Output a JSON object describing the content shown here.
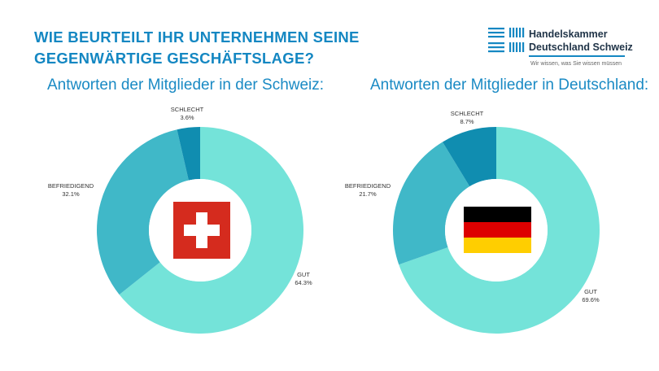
{
  "title_line1": "WIE BEURTEILT IHR UNTERNEHMEN SEINE",
  "title_line2": "GEGENWÄRTIGE GESCHÄFTSLAGE?",
  "logo": {
    "line1": "Handelskammer",
    "line2": "Deutschland Schweiz",
    "tagline": "Wir wissen, was Sie wissen müssen",
    "color": "#1487c2"
  },
  "colors": {
    "GUT": "#74e3d9",
    "BEFRIEDIGEND": "#40b8c8",
    "SCHLECHT": "#108db0"
  },
  "chart_data": [
    {
      "type": "pie",
      "donut": true,
      "title": "Antworten der Mitglieder in der Schweiz:",
      "center_icon": "swiss-flag",
      "categories": [
        "GUT",
        "BEFRIEDIGEND",
        "SCHLECHT"
      ],
      "values": [
        64.3,
        32.1,
        3.6
      ],
      "labels": [
        "64.3%",
        "32.1%",
        "3.6%"
      ]
    },
    {
      "type": "pie",
      "donut": true,
      "title": "Antworten der Mitglieder in Deutschland:",
      "center_icon": "german-flag",
      "categories": [
        "GUT",
        "BEFRIEDIGEND",
        "SCHLECHT"
      ],
      "values": [
        69.6,
        21.7,
        8.7
      ],
      "labels": [
        "69.6%",
        "21.7%",
        "8.7%"
      ]
    }
  ]
}
